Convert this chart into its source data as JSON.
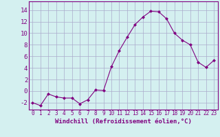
{
  "x": [
    0,
    1,
    2,
    3,
    4,
    5,
    6,
    7,
    8,
    9,
    10,
    11,
    12,
    13,
    14,
    15,
    16,
    17,
    18,
    19,
    20,
    21,
    22,
    23
  ],
  "y": [
    -2.0,
    -2.5,
    -0.5,
    -1.0,
    -1.2,
    -1.2,
    -2.2,
    -1.5,
    0.2,
    0.1,
    4.2,
    7.0,
    9.3,
    11.5,
    12.8,
    13.8,
    13.7,
    12.5,
    10.0,
    8.8,
    8.0,
    5.0,
    4.1,
    5.3
  ],
  "line_color": "#800080",
  "marker": "D",
  "marker_size": 2,
  "bg_color": "#d4f0f0",
  "grid_color": "#aaaacc",
  "xlabel": "Windchill (Refroidissement éolien,°C)",
  "xlabel_fontsize": 6.5,
  "ytick_fontsize": 6.5,
  "xtick_fontsize": 5.5,
  "ylabel_ticks": [
    -2,
    0,
    2,
    4,
    6,
    8,
    10,
    12,
    14
  ],
  "xtick_labels": [
    "0",
    "1",
    "2",
    "3",
    "4",
    "5",
    "6",
    "7",
    "8",
    "9",
    "10",
    "11",
    "12",
    "13",
    "14",
    "15",
    "16",
    "17",
    "18",
    "19",
    "20",
    "21",
    "22",
    "23"
  ],
  "ylim": [
    -3.2,
    15.5
  ],
  "xlim": [
    -0.5,
    23.5
  ]
}
